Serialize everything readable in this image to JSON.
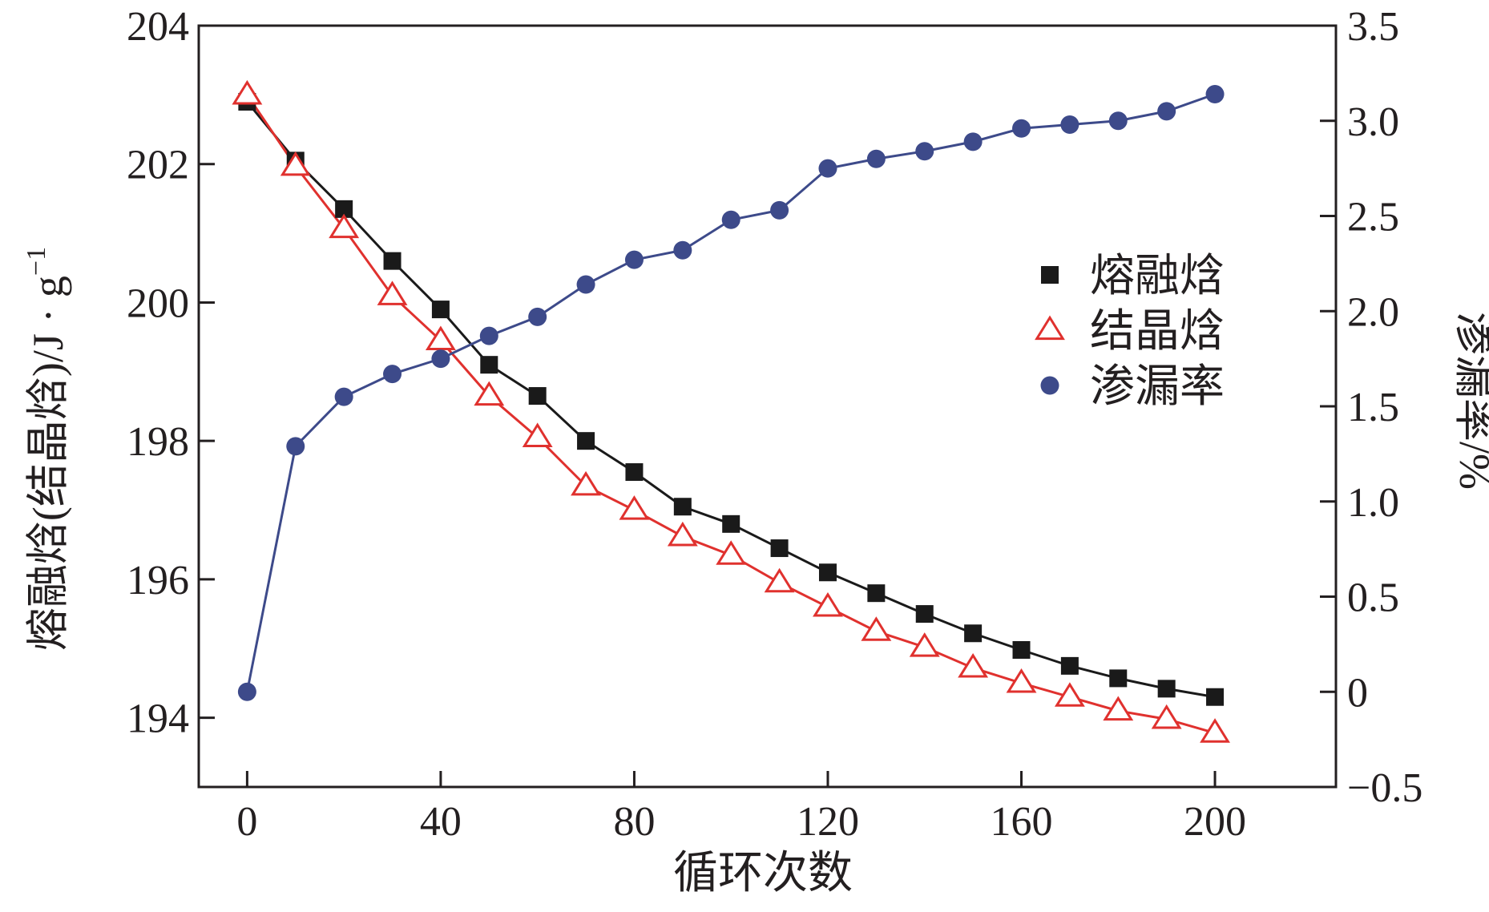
{
  "chart_data": {
    "type": "line",
    "xlabel": "循环次数",
    "ylabel_left": "熔融焓(结晶焓)/J · g",
    "ylabel_left_sup": "−1",
    "ylabel_right": "渗漏率/%",
    "x_ticks": [
      "0",
      "40",
      "80",
      "120",
      "160",
      "200"
    ],
    "x_tick_values": [
      0,
      40,
      80,
      120,
      160,
      200
    ],
    "xlim": [
      -10,
      225
    ],
    "y_left_ticks": [
      "194",
      "196",
      "198",
      "200",
      "202",
      "204"
    ],
    "y_left_tick_values": [
      194,
      196,
      198,
      200,
      202,
      204
    ],
    "ylim_left": [
      193,
      204
    ],
    "y_right_ticks": [
      "−0.5",
      "0",
      "0.5",
      "1.0",
      "1.5",
      "2.0",
      "2.5",
      "3.0",
      "3.5"
    ],
    "y_right_tick_values": [
      -0.5,
      0,
      0.5,
      1.0,
      1.5,
      2.0,
      2.5,
      3.0,
      3.5
    ],
    "ylim_right": [
      -0.5,
      3.5
    ],
    "legend_position": "right-middle",
    "x": [
      0,
      10,
      20,
      30,
      40,
      50,
      60,
      70,
      80,
      90,
      100,
      110,
      120,
      130,
      140,
      150,
      160,
      170,
      180,
      190,
      200
    ],
    "series": [
      {
        "name": "熔融焓",
        "axis": "left",
        "marker": "square",
        "color": "#1a1a1a",
        "line_color": "#1a1a1a",
        "values": [
          202.9,
          202.05,
          201.35,
          200.6,
          199.9,
          199.1,
          198.65,
          198.0,
          197.55,
          197.05,
          196.8,
          196.45,
          196.1,
          195.8,
          195.5,
          195.22,
          194.98,
          194.75,
          194.57,
          194.42,
          194.3
        ]
      },
      {
        "name": "结晶焓",
        "axis": "left",
        "marker": "triangle-open",
        "color": "#e0312e",
        "line_color": "#e0312e",
        "values": [
          203.0,
          201.97,
          201.07,
          200.1,
          199.45,
          198.65,
          198.05,
          197.35,
          197.0,
          196.62,
          196.35,
          195.95,
          195.6,
          195.25,
          195.02,
          194.72,
          194.5,
          194.3,
          194.1,
          193.98,
          193.78
        ]
      },
      {
        "name": "渗漏率",
        "axis": "right",
        "marker": "circle",
        "color": "#3d4a8a",
        "line_color": "#3d4a8a",
        "values": [
          0.0,
          1.29,
          1.55,
          1.67,
          1.75,
          1.87,
          1.97,
          2.14,
          2.27,
          2.32,
          2.48,
          2.53,
          2.75,
          2.8,
          2.84,
          2.89,
          2.96,
          2.98,
          3.0,
          3.05,
          3.14
        ]
      }
    ]
  }
}
